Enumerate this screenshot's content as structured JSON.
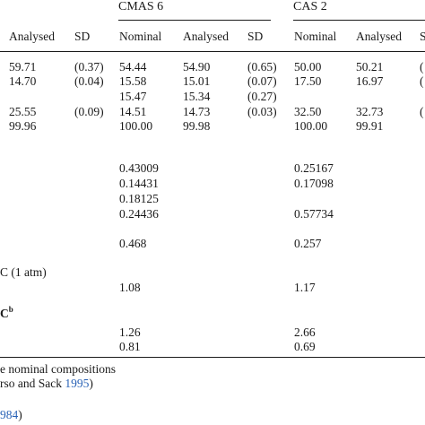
{
  "group_headers": {
    "cmas6": "CMAS 6",
    "cas2": "CAS 2"
  },
  "col_headers": {
    "analysed": "Analysed",
    "sd": "SD",
    "cmas6_nominal": "Nominal",
    "cmas6_analysed": "Analysed",
    "cmas6_sd": "SD",
    "cas2_nominal": "Nominal",
    "cas2_analysed": "Analysed",
    "cas2_sd": "S"
  },
  "rows": [
    {
      "a": "59.71",
      "sd": "(0.37)",
      "n6": "54.44",
      "a6": "54.90",
      "sd6": "(0.65)",
      "n2": "50.00",
      "a2": "50.21",
      "sd2": "("
    },
    {
      "a": "14.70",
      "sd": "(0.04)",
      "n6": "15.58",
      "a6": "15.01",
      "sd6": "(0.07)",
      "n2": "17.50",
      "a2": "16.97",
      "sd2": "("
    },
    {
      "a": "",
      "sd": "",
      "n6": "15.47",
      "a6": "15.34",
      "sd6": "(0.27)",
      "n2": "",
      "a2": "",
      "sd2": ""
    },
    {
      "a": "25.55",
      "sd": "(0.09)",
      "n6": "14.51",
      "a6": "14.73",
      "sd6": "(0.03)",
      "n2": "32.50",
      "a2": "32.73",
      "sd2": "("
    },
    {
      "a": "99.96",
      "sd": "",
      "n6": "100.00",
      "a6": "99.98",
      "sd6": "",
      "n2": "100.00",
      "a2": "99.91",
      "sd2": ""
    }
  ],
  "fractions": [
    {
      "n6": "0.43009",
      "n2": "0.25167"
    },
    {
      "n6": "0.14431",
      "n2": "0.17098"
    },
    {
      "n6": "0.18125",
      "n2": ""
    },
    {
      "n6": "0.24436",
      "n2": "0.57734"
    }
  ],
  "single_values": [
    {
      "n6": "0.468",
      "n2": "0.257"
    }
  ],
  "section_labels": {
    "temp_label": "C (1 atm)",
    "c_label": "C",
    "c_sup": "b"
  },
  "temp_values": {
    "n6": "1.08",
    "n2": "1.17"
  },
  "c_values": [
    {
      "n6": "1.26",
      "n2": "2.66"
    },
    {
      "n6": "0.81",
      "n2": "0.69"
    }
  ],
  "footnotes": {
    "line1": "e nominal compositions",
    "line2_text": "rso and Sack ",
    "line2_link": "1995",
    "line2_end": ")",
    "line3_link": "984",
    "line3_end": ")"
  }
}
